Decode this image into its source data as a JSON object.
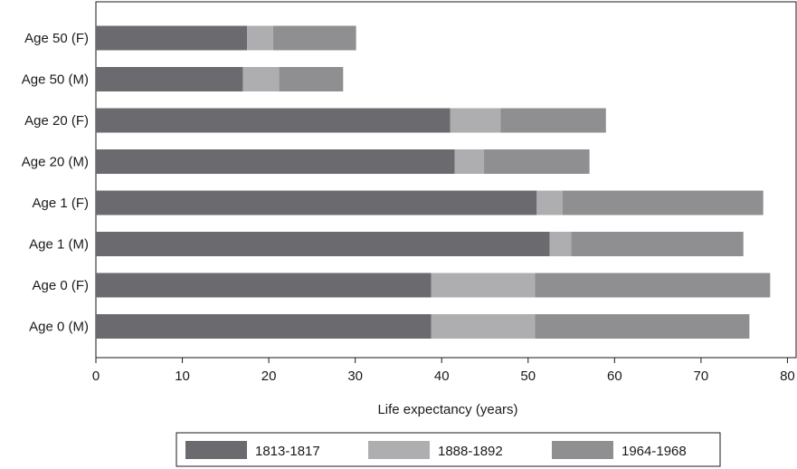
{
  "chart_data": {
    "type": "bar",
    "orientation": "horizontal",
    "stacked": true,
    "categories": [
      "Age 50 (F)",
      "Age 50 (M)",
      "Age 20 (F)",
      "Age 20 (M)",
      "Age 1 (F)",
      "Age 1 (M)",
      "Age 0 (F)",
      "Age 0 (M)"
    ],
    "series": [
      {
        "name": "1813-1817",
        "values": [
          17.5,
          17.0,
          41.0,
          41.5,
          51.0,
          52.5,
          38.8,
          38.8
        ],
        "color": "#6b6a6e"
      },
      {
        "name": "1888-1892",
        "values": [
          3.0,
          4.2,
          5.8,
          3.4,
          3.0,
          2.5,
          12.0,
          12.0
        ],
        "color": "#aeadb0"
      },
      {
        "name": "1964-1968",
        "values": [
          9.6,
          7.4,
          12.2,
          12.2,
          23.2,
          19.9,
          27.2,
          24.8
        ],
        "color": "#8f8e91"
      }
    ],
    "xlabel": "Life expectancy (years)",
    "xlim": [
      0,
      81
    ],
    "xticks": [
      0,
      10,
      20,
      30,
      40,
      50,
      60,
      70,
      80
    ],
    "grid": false,
    "legend_position": "bottom"
  }
}
